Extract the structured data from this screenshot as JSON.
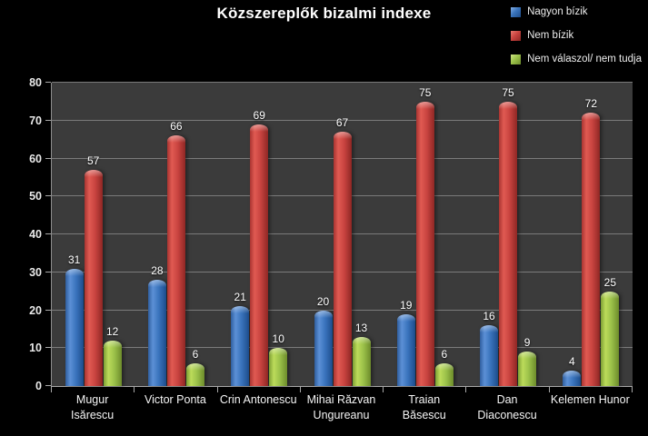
{
  "title": "Közszereplők bizalmi indexe",
  "colors": {
    "background": "#000000",
    "plot_background": "#3b3b3b",
    "gridline": "#7b7b7b",
    "text": "#ffffff",
    "series_blue": "#3a74bd",
    "series_red": "#c94440",
    "series_green": "#9cc24a"
  },
  "chart_data": {
    "type": "bar",
    "title": "Közszereplők bizalmi indexe",
    "categories": [
      "Mugur\nIsărescu",
      "Victor Ponta",
      "Crin Antonescu",
      "Mihai Răzvan\nUngureanu",
      "Traian\nBăsescu",
      "Dan Diaconescu",
      "Kelemen Hunor"
    ],
    "series": [
      {
        "name": "Nagyon bízik",
        "color": "#3a74bd",
        "values": [
          31,
          28,
          21,
          20,
          19,
          16,
          4
        ]
      },
      {
        "name": "Nem bízik",
        "color": "#c94440",
        "values": [
          57,
          66,
          69,
          67,
          75,
          75,
          72
        ]
      },
      {
        "name": "Nem válaszol/ nem tudja",
        "color": "#9cc24a",
        "values": [
          12,
          6,
          10,
          13,
          6,
          9,
          25
        ]
      }
    ],
    "xlabel": "",
    "ylabel": "",
    "ylim": [
      0,
      80
    ],
    "ytick_interval": 10,
    "grid": true,
    "legend_position": "top-right",
    "data_labels": true
  }
}
